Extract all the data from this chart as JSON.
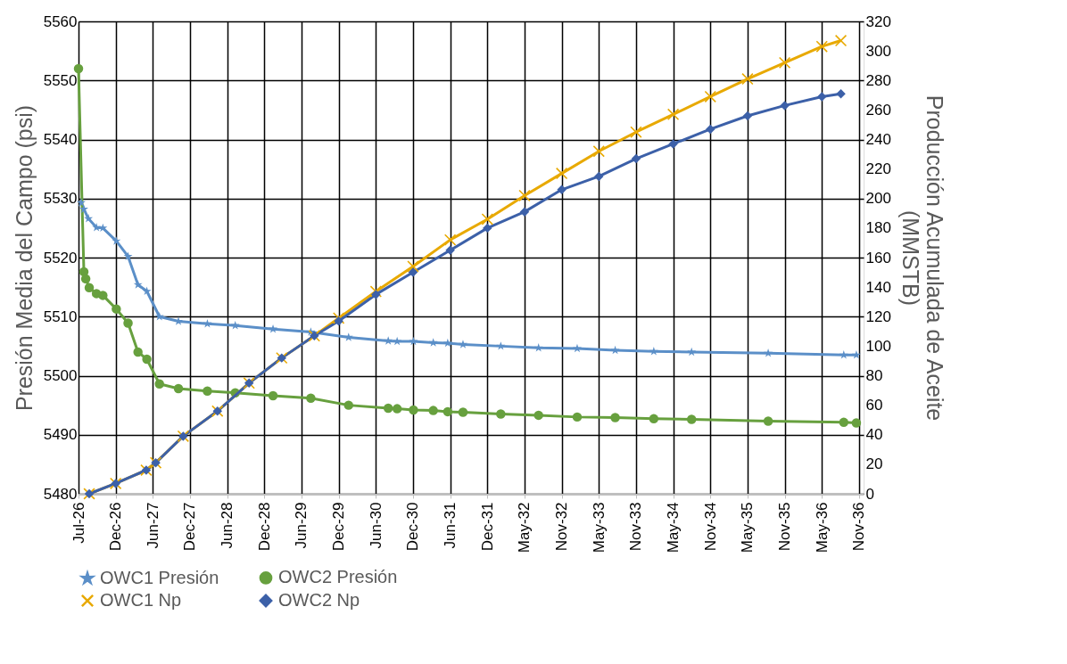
{
  "chart_data": {
    "type": "line",
    "ylabel": "Presión Media del Campo (psi)",
    "y2label": "Producción Acumulada de Aceite (MMSTB)",
    "xlim": [
      "2026-07-01",
      "2036-11-27"
    ],
    "xticks": [
      {
        "value": "2026-07-01",
        "label": "Jul-26"
      },
      {
        "value": "2026-12-28",
        "label": "Dec-26"
      },
      {
        "value": "2027-06-26",
        "label": "Jun-27"
      },
      {
        "value": "2027-12-23",
        "label": "Dec-27"
      },
      {
        "value": "2028-06-20",
        "label": "Jun-28"
      },
      {
        "value": "2028-12-17",
        "label": "Dec-28"
      },
      {
        "value": "2029-06-15",
        "label": "Jun-29"
      },
      {
        "value": "2029-12-12",
        "label": "Dec-29"
      },
      {
        "value": "2030-06-10",
        "label": "Jun-30"
      },
      {
        "value": "2030-12-07",
        "label": "Dec-30"
      },
      {
        "value": "2031-06-05",
        "label": "Jun-31"
      },
      {
        "value": "2031-12-02",
        "label": "Dec-31"
      },
      {
        "value": "2032-05-30",
        "label": "May-32"
      },
      {
        "value": "2032-11-26",
        "label": "Nov-32"
      },
      {
        "value": "2033-05-25",
        "label": "May-33"
      },
      {
        "value": "2033-11-21",
        "label": "Nov-33"
      },
      {
        "value": "2034-05-20",
        "label": "May-34"
      },
      {
        "value": "2034-11-16",
        "label": "Nov-34"
      },
      {
        "value": "2035-05-15",
        "label": "May-35"
      },
      {
        "value": "2035-11-11",
        "label": "Nov-35"
      },
      {
        "value": "2036-05-09",
        "label": "May-36"
      },
      {
        "value": "2036-11-05",
        "label": "Nov-36"
      }
    ],
    "ylim": [
      5480,
      5560
    ],
    "yticks": [
      5480,
      5490,
      5500,
      5510,
      5520,
      5530,
      5540,
      5550,
      5560
    ],
    "y2lim": [
      0,
      320
    ],
    "y2ticks": [
      0,
      20,
      40,
      60,
      80,
      100,
      120,
      140,
      160,
      180,
      200,
      220,
      240,
      260,
      280,
      300,
      320
    ],
    "grid": true,
    "legend": "bottom",
    "line_style": "solid",
    "series": [
      {
        "name": "OWC1 Presión",
        "color": "#5b8fc8",
        "marker": "star",
        "x": [
          "2026-07-14",
          "2026-07-27",
          "2026-08-18",
          "2026-09-26",
          "2026-10-27",
          "2026-12-31",
          "2027-02-26",
          "2027-04-15",
          "2027-05-28",
          "2027-07-28",
          "2027-10-28",
          "2028-03-16",
          "2028-07-29",
          "2029-01-28",
          "2029-07-30",
          "2030-01-29",
          "2030-08-09",
          "2030-09-21",
          "2030-12-09",
          "2031-03-15",
          "2031-05-24",
          "2031-08-06",
          "2032-02-05",
          "2032-08-06",
          "2033-02-09",
          "2033-08-12",
          "2034-02-15",
          "2034-08-17",
          "2035-08-23",
          "2036-08-23",
          "2036-10-23"
        ],
        "values": [
          5529.3,
          5528.2,
          5526.6,
          5525.1,
          5525.0,
          5522.8,
          5520.2,
          5515.4,
          5514.3,
          5510.0,
          5509.2,
          5508.8,
          5508.5,
          5507.9,
          5507.4,
          5506.5,
          5505.9,
          5505.8,
          5505.8,
          5505.6,
          5505.5,
          5505.3,
          5505.0,
          5504.7,
          5504.6,
          5504.3,
          5504.1,
          5504.0,
          5503.8,
          5503.5,
          5503.5
        ]
      },
      {
        "name": "OWC2 Presión",
        "color": "#67a03e",
        "marker": "circle",
        "x": [
          "2026-07-01",
          "2026-07-27",
          "2026-08-05",
          "2026-08-22",
          "2026-09-26",
          "2026-10-27",
          "2026-12-31",
          "2027-02-26",
          "2027-04-15",
          "2027-05-28",
          "2027-07-28",
          "2027-10-28",
          "2028-03-16",
          "2028-07-29",
          "2029-01-28",
          "2029-07-30",
          "2030-01-29",
          "2030-08-09",
          "2030-09-21",
          "2030-12-09",
          "2031-03-15",
          "2031-05-24",
          "2031-08-06",
          "2032-02-05",
          "2032-08-06",
          "2033-02-09",
          "2033-08-12",
          "2034-02-15",
          "2034-08-17",
          "2035-08-23",
          "2036-08-23",
          "2036-10-23"
        ],
        "values": [
          5552,
          5517.6,
          5516.4,
          5514.9,
          5513.9,
          5513.6,
          5511.3,
          5508.9,
          5504.0,
          5502.8,
          5498.6,
          5497.8,
          5497.4,
          5497.1,
          5496.6,
          5496.2,
          5495.0,
          5494.5,
          5494.4,
          5494.2,
          5494.1,
          5493.9,
          5493.8,
          5493.5,
          5493.3,
          5493.0,
          5492.9,
          5492.7,
          5492.6,
          5492.3,
          5492.1,
          5492.0
        ]
      },
      {
        "name": "OWC1 Np",
        "color": "#e8a900",
        "marker": "cross",
        "axis": "y2",
        "x": [
          "2026-08-22",
          "2026-12-28",
          "2027-05-25",
          "2027-07-10",
          "2027-11-20",
          "2028-05-04",
          "2028-10-04",
          "2029-03-11",
          "2029-08-16",
          "2029-12-12",
          "2030-06-10",
          "2030-12-07",
          "2031-06-05",
          "2031-12-02",
          "2032-05-30",
          "2032-11-26",
          "2033-05-25",
          "2033-11-21",
          "2034-05-20",
          "2034-11-16",
          "2035-05-15",
          "2035-11-11",
          "2036-05-09",
          "2036-08-09"
        ],
        "values": [
          0,
          7,
          16,
          21,
          39,
          56,
          75,
          92,
          107,
          119,
          137,
          154,
          172,
          186,
          202,
          217,
          232,
          245,
          257,
          269,
          281,
          292,
          303,
          307
        ]
      },
      {
        "name": "OWC2 Np",
        "color": "#3c60a8",
        "marker": "diamond",
        "axis": "y2",
        "x": [
          "2026-08-22",
          "2026-12-28",
          "2027-05-25",
          "2027-07-10",
          "2027-11-20",
          "2028-05-04",
          "2028-10-04",
          "2029-03-11",
          "2029-08-16",
          "2029-12-12",
          "2030-06-10",
          "2030-12-07",
          "2031-06-05",
          "2031-12-02",
          "2032-05-30",
          "2032-11-26",
          "2033-05-25",
          "2033-11-21",
          "2034-05-20",
          "2034-11-16",
          "2035-05-15",
          "2035-11-11",
          "2036-05-09",
          "2036-08-09"
        ],
        "values": [
          0,
          7,
          16,
          21,
          39,
          56,
          75,
          92,
          107,
          117,
          135,
          150,
          165,
          180,
          191,
          206,
          215,
          227,
          237,
          247,
          256,
          263,
          269,
          271
        ]
      }
    ]
  }
}
